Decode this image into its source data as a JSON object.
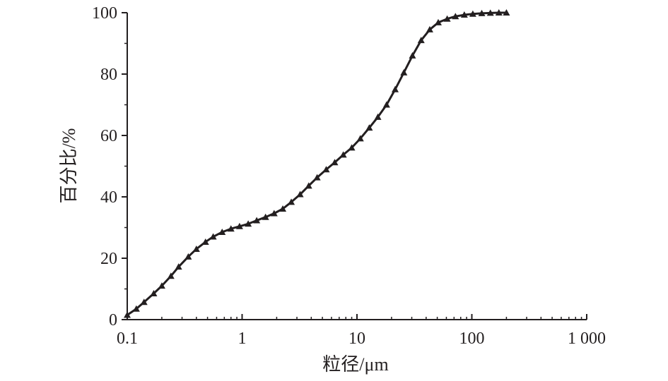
{
  "chart_data": {
    "type": "line",
    "xlabel": "粒径/μm",
    "ylabel": "百分比/%",
    "x_scale": "log",
    "xlim": [
      0.1,
      1000
    ],
    "ylim": [
      0,
      100
    ],
    "x_ticks": [
      {
        "value": 0.1,
        "label": "0.1"
      },
      {
        "value": 1,
        "label": "1"
      },
      {
        "value": 10,
        "label": "10"
      },
      {
        "value": 100,
        "label": "100"
      },
      {
        "value": 1000,
        "label": "1 000"
      }
    ],
    "y_ticks": [
      {
        "value": 0,
        "label": "0"
      },
      {
        "value": 20,
        "label": "20"
      },
      {
        "value": 40,
        "label": "40"
      },
      {
        "value": 60,
        "label": "60"
      },
      {
        "value": 80,
        "label": "80"
      },
      {
        "value": 100,
        "label": "100"
      }
    ],
    "grid": false,
    "legend": "none",
    "marker": "triangle",
    "line_color": "#231f20",
    "series": [
      {
        "x": [
          0.1,
          0.12,
          0.14,
          0.17,
          0.2,
          0.24,
          0.28,
          0.34,
          0.4,
          0.48,
          0.56,
          0.67,
          0.8,
          0.95,
          1.13,
          1.34,
          1.6,
          1.9,
          2.26,
          2.68,
          3.2,
          3.8,
          4.5,
          5.4,
          6.4,
          7.6,
          9.0,
          10.7,
          12.8,
          15.2,
          18.1,
          21.5,
          25.6,
          30.4,
          36.2,
          43.0,
          51.0,
          61.0,
          72.0,
          86.0,
          102.0,
          122.0,
          145.0,
          172.0,
          200.0
        ],
        "y": [
          1.5,
          3.5,
          5.7,
          8.5,
          11.0,
          14.2,
          17.2,
          20.5,
          23.0,
          25.3,
          27.0,
          28.5,
          29.6,
          30.4,
          31.2,
          32.3,
          33.4,
          34.6,
          36.1,
          38.3,
          40.8,
          43.6,
          46.3,
          48.9,
          51.2,
          53.7,
          56.0,
          59.0,
          62.5,
          66.0,
          70.0,
          75.0,
          80.5,
          86.0,
          91.0,
          94.5,
          96.8,
          98.0,
          98.8,
          99.3,
          99.6,
          99.8,
          99.9,
          100.0,
          100.0
        ]
      }
    ]
  }
}
